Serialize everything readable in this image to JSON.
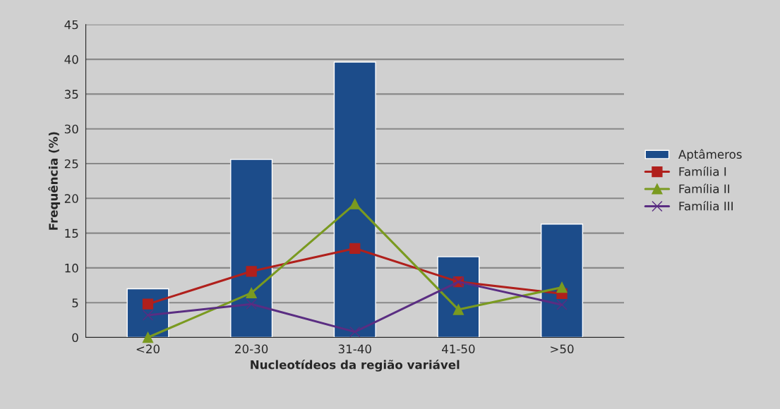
{
  "chart_data": {
    "type": "bar",
    "xlabel": "Nucleotídeos da região variável",
    "ylabel": "Frequência (%)",
    "categories": [
      "<20",
      "20-30",
      "31-40",
      "41-50",
      ">50"
    ],
    "series": [
      {
        "name": "Aptâmeros",
        "color": "#1c4c8a",
        "values": [
          7.0,
          25.6,
          39.6,
          11.6,
          16.3
        ]
      },
      {
        "name": "Família I",
        "type": "line",
        "color": "#b0201c",
        "marker": "square",
        "values": [
          4.8,
          9.5,
          12.8,
          8.0,
          6.3
        ]
      },
      {
        "name": "Família II",
        "type": "line",
        "color": "#7a9a20",
        "marker": "triangle",
        "values": [
          0,
          6.4,
          19.2,
          4.0,
          7.2
        ]
      },
      {
        "name": "Família III",
        "type": "line",
        "color": "#5a2d82",
        "marker": "cross",
        "values": [
          3.2,
          4.8,
          0.8,
          8.0,
          4.7
        ]
      }
    ],
    "ylim": [
      0,
      45
    ],
    "yticks": [
      0,
      5,
      10,
      15,
      20,
      25,
      30,
      35,
      40,
      45
    ],
    "grid": "y",
    "legend": "right"
  }
}
